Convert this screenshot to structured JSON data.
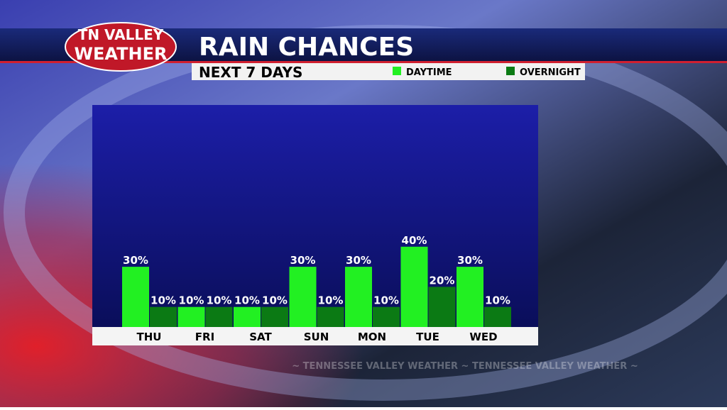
{
  "logo": {
    "line1": "TN VALLEY",
    "line2": "WEATHER"
  },
  "watermark": "~ TENNESSEE VALLEY WEATHER ~ TENNESSEE VALLEY WEATHER ~",
  "chart_data": {
    "type": "bar",
    "title": "RAIN CHANCES",
    "subtitle": "NEXT 7 DAYS",
    "categories": [
      "THU",
      "FRI",
      "SAT",
      "SUN",
      "MON",
      "TUE",
      "WED"
    ],
    "series": [
      {
        "name": "DAYTIME",
        "color": "#22f022",
        "values": [
          30,
          10,
          10,
          30,
          30,
          40,
          30
        ],
        "value_labels": [
          "30%",
          "10%",
          "10%",
          "30%",
          "30%",
          "40%",
          "30%"
        ]
      },
      {
        "name": "OVERNIGHT",
        "color": "#0b7a14",
        "values": [
          10,
          10,
          10,
          10,
          10,
          20,
          10
        ],
        "value_labels": [
          "10%",
          "10%",
          "10%",
          "10%",
          "10%",
          "20%",
          "10%"
        ]
      }
    ]
  }
}
